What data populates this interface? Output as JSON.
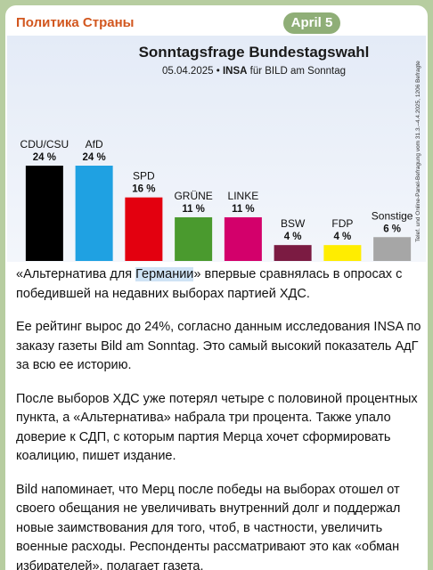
{
  "header": {
    "channel": "Политика Страны",
    "date": "April 5"
  },
  "chart_data": {
    "type": "bar",
    "title": "Sonntagsfrage Bundestagswahl",
    "subtitle": {
      "date": "05.04.2025 •",
      "institute": "INSA",
      "client": "für BILD am Sonntag"
    },
    "note": "Telef. und Online-Panel-Befragung vom 31.3.–4.4.2025, 1206 Befragte",
    "categories": [
      "CDU/CSU",
      "AfD",
      "SPD",
      "GRÜNE",
      "LINKE",
      "BSW",
      "FDP",
      "Sonstige"
    ],
    "values": [
      24,
      24,
      16,
      11,
      11,
      4,
      4,
      6
    ],
    "value_labels": [
      "24 %",
      "24 %",
      "16 %",
      "11 %",
      "11 %",
      "4 %",
      "4 %",
      "6 %"
    ],
    "colors": [
      "#000000",
      "#1fa1e2",
      "#e3000f",
      "#4a9a2e",
      "#d3006b",
      "#7b1b42",
      "#ffed00",
      "#a6a6a6"
    ]
  },
  "post": {
    "paragraph1": {
      "before": "«Альтернатива для ",
      "highlight": "Германии",
      "after": "» впервые сравнялась в опросах с победившей на недавних выборах партией ХДС."
    },
    "paragraphs": [
      "Ее рейтинг вырос до 24%, согласно данным исследования INSA по заказу газеты Bild am Sonntag. Это самый высокий показатель АдГ за всю ее историю.",
      "После выборов ХДС уже потерял четыре с половиной процентных пункта, а «Альтернатива» набрала три процента. Также упало доверие к СДП, с которым партия Мерца хочет сформировать коалицию, пишет издание.",
      "Bild напоминает, что Мерц после победы на выборах отошел от своего обещания не увеличивать внутренний долг и поддержал новые заимствования для того, чтоб, в частности, увеличить военные расходы. Респонденты рассматривают это как «обман избирателей», полагает газета."
    ]
  }
}
